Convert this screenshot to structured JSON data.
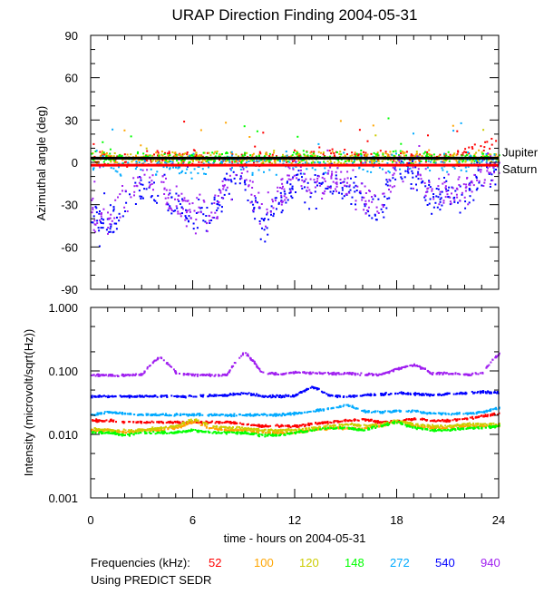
{
  "chart_data": [
    {
      "type": "scatter",
      "title": "URAP Direction Finding  2004-05-31",
      "xlabel": "",
      "ylabel": "Azimuthal angle (deg)",
      "xlim": [
        0,
        24
      ],
      "ylim": [
        -90,
        90
      ],
      "yticks": [
        "90",
        "60",
        "30",
        "0",
        "-30",
        "-60",
        "-90"
      ],
      "ytick_values": [
        90,
        60,
        30,
        0,
        -30,
        -60,
        -90
      ],
      "reference_lines": [
        {
          "name": "Jupiter",
          "y": 3,
          "color": "#000000"
        },
        {
          "name": "Saturn",
          "y": -2,
          "color": "#ff0000"
        }
      ],
      "x_hours": [
        0,
        1,
        2,
        3,
        4,
        5,
        6,
        7,
        8,
        9,
        10,
        11,
        12,
        13,
        14,
        15,
        16,
        17,
        18,
        19,
        20,
        21,
        22,
        23,
        24
      ],
      "series": [
        {
          "name": "52",
          "color": "#ff0000",
          "mean": [
            3,
            3,
            3,
            4,
            5,
            6,
            4,
            3,
            3,
            3,
            3,
            3,
            4,
            5,
            6,
            5,
            4,
            4,
            4,
            4,
            5,
            5,
            8,
            12,
            15
          ],
          "spread": 5
        },
        {
          "name": "100",
          "color": "#ffa500",
          "mean": [
            4,
            4,
            4,
            4,
            4,
            4,
            4,
            3,
            3,
            3,
            3,
            3,
            4,
            4,
            4,
            4,
            4,
            4,
            4,
            4,
            4,
            4,
            5,
            5,
            5
          ],
          "spread": 5
        },
        {
          "name": "120",
          "color": "#cccc00",
          "mean": [
            3,
            3,
            3,
            3,
            3,
            3,
            3,
            3,
            3,
            3,
            3,
            3,
            3,
            3,
            3,
            3,
            3,
            3,
            3,
            3,
            3,
            3,
            3,
            3,
            3
          ],
          "spread": 5
        },
        {
          "name": "148",
          "color": "#00ff00",
          "mean": [
            4,
            4,
            4,
            4,
            4,
            4,
            4,
            4,
            4,
            4,
            4,
            4,
            4,
            4,
            4,
            4,
            4,
            4,
            4,
            4,
            4,
            4,
            4,
            4,
            4
          ],
          "spread": 5
        },
        {
          "name": "272",
          "color": "#00aaff",
          "mean": [
            0,
            -2,
            -2,
            -1,
            0,
            -2,
            -3,
            -2,
            0,
            0,
            -2,
            0,
            0,
            -2,
            0,
            -1,
            -2,
            -2,
            0,
            0,
            -1,
            -2,
            0,
            0,
            0
          ],
          "spread": 8
        },
        {
          "name": "540",
          "color": "#0000ff",
          "mean": [
            -40,
            -45,
            -30,
            -15,
            -20,
            -30,
            -35,
            -40,
            -15,
            -10,
            -45,
            -25,
            -10,
            -20,
            -15,
            -20,
            -25,
            -35,
            -5,
            -5,
            -25,
            -20,
            -25,
            -10,
            -5
          ],
          "spread": 14
        },
        {
          "name": "940",
          "color": "#a020f0",
          "mean": [
            -35,
            -40,
            -25,
            -10,
            -15,
            -30,
            -35,
            -40,
            -10,
            -5,
            -35,
            -20,
            -5,
            -20,
            -10,
            -15,
            -25,
            -30,
            -3,
            -3,
            -20,
            -15,
            -20,
            -5,
            -3
          ],
          "spread": 14
        }
      ]
    },
    {
      "type": "scatter",
      "xlabel": "time - hours on 2004-05-31",
      "ylabel": "Intensity (microvolt/sqrt(Hz))",
      "xlim": [
        0,
        24
      ],
      "ylim": [
        0.001,
        1.0
      ],
      "yscale": "log",
      "yticks": [
        "1.000",
        "0.100",
        "0.010",
        "0.001"
      ],
      "ytick_values": [
        1.0,
        0.1,
        0.01,
        0.001
      ],
      "xticks": [
        "0",
        "6",
        "12",
        "18",
        "24"
      ],
      "xtick_values": [
        0,
        6,
        12,
        18,
        24
      ],
      "x_hours": [
        0,
        1,
        2,
        3,
        4,
        5,
        6,
        7,
        8,
        9,
        10,
        11,
        12,
        13,
        14,
        15,
        16,
        17,
        18,
        19,
        20,
        21,
        22,
        23,
        24
      ],
      "series": [
        {
          "name": "52",
          "color": "#ff0000",
          "values": [
            0.017,
            0.017,
            0.016,
            0.016,
            0.016,
            0.016,
            0.016,
            0.016,
            0.016,
            0.015,
            0.014,
            0.014,
            0.014,
            0.015,
            0.016,
            0.017,
            0.018,
            0.016,
            0.017,
            0.018,
            0.017,
            0.017,
            0.018,
            0.02,
            0.022
          ]
        },
        {
          "name": "100",
          "color": "#ffa500",
          "values": [
            0.012,
            0.012,
            0.011,
            0.012,
            0.012,
            0.013,
            0.016,
            0.013,
            0.012,
            0.012,
            0.011,
            0.011,
            0.011,
            0.012,
            0.013,
            0.013,
            0.013,
            0.014,
            0.016,
            0.014,
            0.013,
            0.013,
            0.014,
            0.014,
            0.014
          ]
        },
        {
          "name": "120",
          "color": "#cccc00",
          "values": [
            0.013,
            0.012,
            0.012,
            0.012,
            0.013,
            0.014,
            0.018,
            0.014,
            0.013,
            0.013,
            0.012,
            0.012,
            0.012,
            0.013,
            0.014,
            0.015,
            0.014,
            0.015,
            0.017,
            0.015,
            0.014,
            0.014,
            0.015,
            0.015,
            0.015
          ]
        },
        {
          "name": "148",
          "color": "#00ff00",
          "values": [
            0.011,
            0.011,
            0.01,
            0.011,
            0.011,
            0.011,
            0.012,
            0.011,
            0.011,
            0.011,
            0.01,
            0.01,
            0.011,
            0.012,
            0.013,
            0.013,
            0.012,
            0.014,
            0.016,
            0.013,
            0.012,
            0.012,
            0.013,
            0.013,
            0.014
          ]
        },
        {
          "name": "272",
          "color": "#00aaff",
          "values": [
            0.021,
            0.023,
            0.022,
            0.021,
            0.021,
            0.021,
            0.021,
            0.021,
            0.021,
            0.021,
            0.021,
            0.021,
            0.022,
            0.024,
            0.026,
            0.03,
            0.024,
            0.023,
            0.024,
            0.024,
            0.022,
            0.022,
            0.022,
            0.023,
            0.027
          ]
        },
        {
          "name": "540",
          "color": "#0000ff",
          "values": [
            0.041,
            0.041,
            0.041,
            0.041,
            0.041,
            0.041,
            0.041,
            0.042,
            0.043,
            0.046,
            0.041,
            0.041,
            0.042,
            0.058,
            0.042,
            0.041,
            0.043,
            0.044,
            0.046,
            0.045,
            0.043,
            0.045,
            0.046,
            0.048,
            0.047
          ]
        },
        {
          "name": "940",
          "color": "#a020f0",
          "values": [
            0.088,
            0.088,
            0.088,
            0.09,
            0.17,
            0.095,
            0.09,
            0.088,
            0.09,
            0.2,
            0.096,
            0.092,
            0.098,
            0.095,
            0.094,
            0.094,
            0.092,
            0.09,
            0.11,
            0.13,
            0.094,
            0.094,
            0.09,
            0.095,
            0.19
          ]
        }
      ]
    }
  ],
  "legend": {
    "prefix": "Frequencies (kHz):",
    "items": [
      {
        "label": "52",
        "color": "#ff0000"
      },
      {
        "label": "100",
        "color": "#ffa500"
      },
      {
        "label": "120",
        "color": "#cccc00"
      },
      {
        "label": "148",
        "color": "#00ff00"
      },
      {
        "label": "272",
        "color": "#00aaff"
      },
      {
        "label": "540",
        "color": "#0000ff"
      },
      {
        "label": "940",
        "color": "#a020f0"
      }
    ],
    "note": "Using PREDICT SEDR"
  }
}
